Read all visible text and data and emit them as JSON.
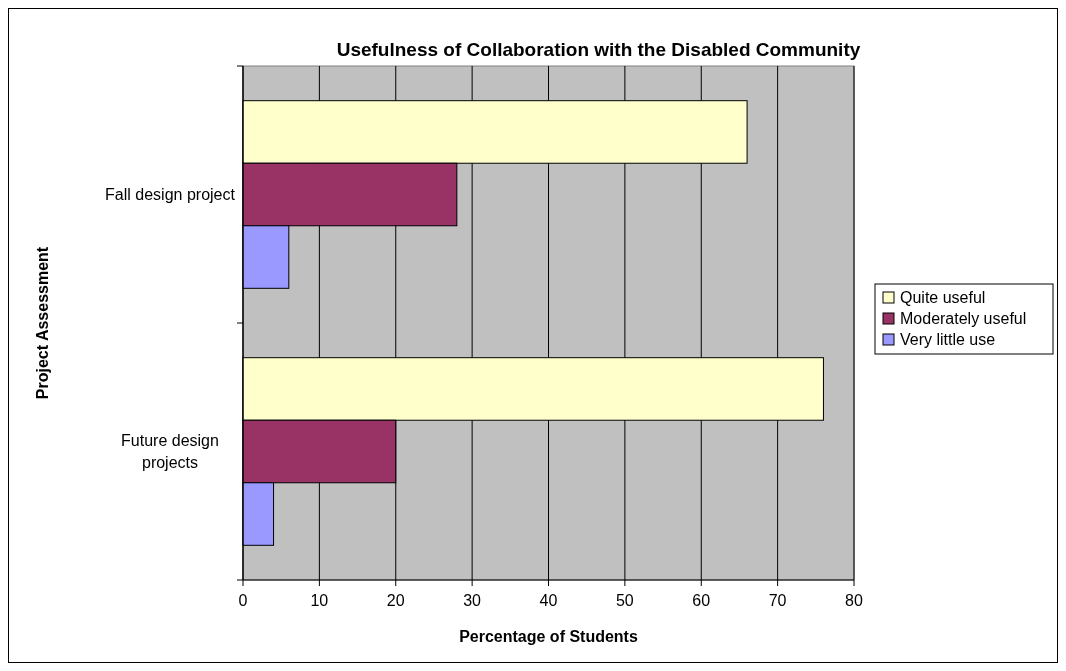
{
  "chart_data": {
    "type": "bar",
    "orientation": "horizontal",
    "title": "Usefulness of Collaboration with the Disabled Community",
    "xlabel": "Percentage of Students",
    "ylabel": "Project Assessment",
    "categories": [
      "Fall design project",
      "Future design projects"
    ],
    "series": [
      {
        "name": "Quite useful",
        "color": "#ffffcc",
        "values": [
          66,
          76
        ]
      },
      {
        "name": "Moderately useful",
        "color": "#993366",
        "values": [
          28,
          20
        ]
      },
      {
        "name": "Very little use",
        "color": "#9999ff",
        "values": [
          6,
          4
        ]
      }
    ],
    "xlim": [
      0,
      80
    ],
    "xticks": [
      0,
      10,
      20,
      30,
      40,
      50,
      60,
      70,
      80
    ],
    "grid": "x",
    "legend": "right"
  }
}
